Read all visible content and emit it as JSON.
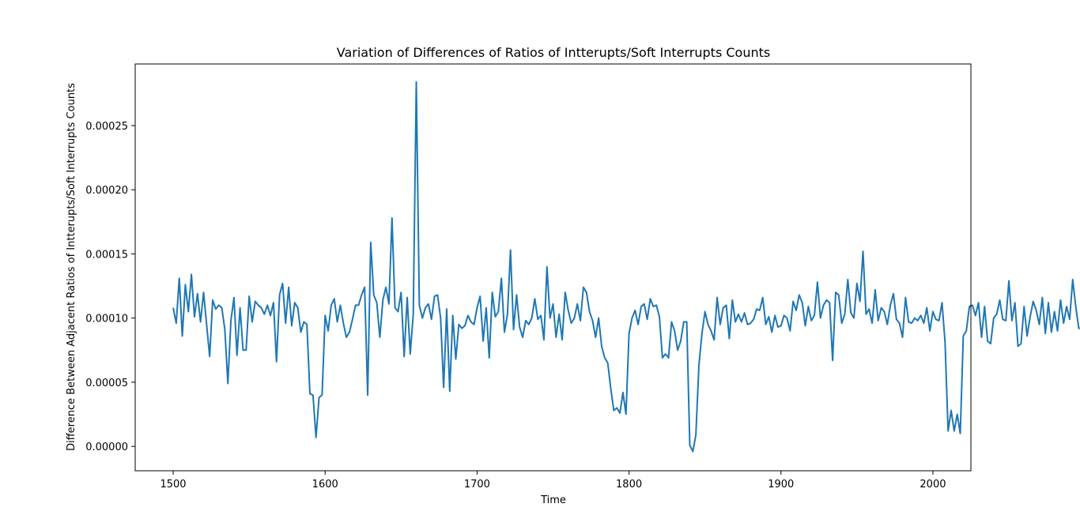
{
  "chart_data": {
    "type": "line",
    "title": "Variation of Differences of Ratios of Intterupts/Soft Interrupts Counts",
    "xlabel": "Time",
    "ylabel": "Difference Between Adjacent Ratios of Intterupts/Soft Interrupts Counts",
    "xlim": [
      1475,
      2025
    ],
    "ylim": [
      -1.9e-05,
      0.000298
    ],
    "x_ticks": [
      1500,
      1600,
      1700,
      1800,
      1900,
      2000
    ],
    "x_tick_labels": [
      "1500",
      "1600",
      "1700",
      "1800",
      "1900",
      "2000"
    ],
    "y_ticks": [
      0,
      5e-05,
      0.0001,
      0.00015,
      0.0002,
      0.00025
    ],
    "y_tick_labels": [
      "0.00000",
      "0.00005",
      "0.00010",
      "0.00015",
      "0.00020",
      "0.00025"
    ],
    "grid": false,
    "legend": "none",
    "line_color": "#1f77b4",
    "series": [
      {
        "x_start": 1500,
        "x_step": 2,
        "values": [
          0.000108,
          9.6e-05,
          0.000131,
          8.6e-05,
          0.000126,
          0.000105,
          0.000134,
          0.000101,
          0.000119,
          9.7e-05,
          0.00012,
          9.5e-05,
          7e-05,
          0.000114,
          0.000107,
          0.00011,
          0.000108,
          9.1e-05,
          4.9e-05,
          9.8e-05,
          0.000116,
          7.1e-05,
          0.000108,
          7.5e-05,
          7.5e-05,
          0.000117,
          9.7e-05,
          0.000113,
          0.00011,
          0.000108,
          0.000103,
          0.00011,
          0.000102,
          0.000112,
          6.6e-05,
          0.000118,
          0.000127,
          9.6e-05,
          0.000124,
          9.4e-05,
          0.000112,
          0.000108,
          8.9e-05,
          9.7e-05,
          9.5e-05,
          4.1e-05,
          4e-05,
          7e-06,
          3.8e-05,
          4e-05,
          0.000102,
          9e-05,
          0.00011,
          0.000115,
          9.7e-05,
          0.00011,
          9.6e-05,
          8.5e-05,
          8.9e-05,
          9.9e-05,
          0.00011,
          0.00011,
          0.000118,
          0.000124,
          4e-05,
          0.000159,
          0.000118,
          0.000112,
          8.5e-05,
          0.000114,
          0.000124,
          0.000111,
          0.000178,
          0.000108,
          0.000105,
          0.00012,
          7e-05,
          0.000116,
          7.2e-05,
          0.000103,
          0.000284,
          0.00011,
          0.0001,
          0.000108,
          0.000111,
          9.9e-05,
          0.000117,
          0.000118,
          0.0001,
          4.6e-05,
          0.000107,
          4.3e-05,
          0.000102,
          6.8e-05,
          9.5e-05,
          9.2e-05,
          9.4e-05,
          0.000102,
          9.7e-05,
          9.5e-05,
          0.000108,
          0.000117,
          8.2e-05,
          0.000108,
          6.9e-05,
          0.00012,
          0.000101,
          0.000105,
          0.000131,
          8.9e-05,
          0.000103,
          0.000153,
          9.1e-05,
          0.000118,
          9.3e-05,
          8.5e-05,
          9.8e-05,
          9.5e-05,
          0.0001,
          0.000115,
          9.9e-05,
          0.000102,
          8.3e-05,
          0.00014,
          0.0001,
          0.000111,
          8.5e-05,
          0.000103,
          8.3e-05,
          0.00012,
          0.000106,
          9.6e-05,
          0.0001,
          0.000111,
          9.8e-05,
          0.000124,
          0.00012,
          0.000105,
          9.8e-05,
          8.5e-05,
          0.0001,
          7.8e-05,
          6.9e-05,
          6.5e-05,
          4.5e-05,
          2.8e-05,
          3e-05,
          2.6e-05,
          4.2e-05,
          2.5e-05,
          8.8e-05,
          0.0001,
          0.000106,
          9.5e-05,
          0.000109,
          0.000111,
          9.9e-05,
          0.000115,
          0.000109,
          0.00011,
          0.000101,
          6.9e-05,
          7.2e-05,
          6.9e-05,
          9.7e-05,
          9e-05,
          7.5e-05,
          8.2e-05,
          9.7e-05,
          9.7e-05,
          1e-06,
          -4e-06,
          9e-06,
          6.3e-05,
          8.8e-05,
          0.000105,
          9.5e-05,
          9e-05,
          8.3e-05,
          0.000116,
          9.5e-05,
          0.000108,
          0.00011,
          8.4e-05,
          0.000114,
          9.7e-05,
          0.000103,
          9.7e-05,
          0.000104,
          9.5e-05,
          9.6e-05,
          9.9e-05,
          0.000107,
          0.000106,
          0.000116,
          9.5e-05,
          0.000101,
          8.9e-05,
          0.000102,
          9.3e-05,
          9.4e-05,
          0.000102,
          0.0001,
          9e-05,
          0.000113,
          0.000106,
          0.000118,
          0.000112,
          9.4e-05,
          0.000109,
          9.8e-05,
          0.000102,
          0.000128,
          0.0001,
          0.00011,
          0.000114,
          0.000112,
          6.7e-05,
          0.00012,
          0.000118,
          9.6e-05,
          0.000103,
          0.00013,
          0.000104,
          0.0001,
          0.000127,
          0.000113,
          0.000152,
          0.000103,
          0.000107,
          9.6e-05,
          0.000122,
          9.8e-05,
          0.000108,
          0.000105,
          9.5e-05,
          0.00011,
          0.000119,
          9.9e-05,
          9.6e-05,
          8.5e-05,
          0.000116,
          9.7e-05,
          9.6e-05,
          0.0001,
          9.8e-05,
          0.000102,
          9.6e-05,
          0.000108,
          9e-05,
          0.000105,
          9.9e-05,
          9.8e-05,
          0.000112,
          8.1e-05,
          1.2e-05,
          2.8e-05,
          1.2e-05,
          2.5e-05,
          1e-05,
          8.6e-05,
          9e-05,
          0.000109,
          0.00011,
          0.000102,
          0.000112,
          8.5e-05,
          0.000109,
          8.2e-05,
          8e-05,
          0.0001,
          0.000103,
          0.000114,
          9.9e-05,
          9.8e-05,
          0.000129,
          9.8e-05,
          0.000112,
          7.8e-05,
          8e-05,
          0.000109,
          8.6e-05,
          0.000101,
          0.000113,
          0.000106,
          9.5e-05,
          0.000116,
          8.8e-05,
          0.000112,
          8.9e-05,
          0.000105,
          9e-05,
          0.000114,
          9.6e-05,
          0.000109,
          9.9e-05,
          0.00013,
          0.000109,
          9.2e-05,
          9.2e-05,
          0.000104,
          9e-05,
          0.000116,
          0.000101,
          8e-05,
          0.000121,
          0.0001,
          9.5e-05,
          9.2e-05,
          0.000118,
          0.000115,
          9.8e-05,
          9.6e-05,
          8.4e-05,
          8e-05,
          5.6e-05,
          9e-05,
          7.8e-05,
          6.7e-05,
          6.5e-05,
          0.000102,
          8.3e-05,
          9.5e-05,
          8.7e-05,
          9.8e-05,
          8.3e-05,
          8.5e-05,
          0.00011,
          9e-05,
          0.000167,
          8.5e-05,
          0.000128,
          9.5e-05,
          0.000125,
          0.000112,
          6.1e-05,
          0.000117,
          0.000106,
          0.0001,
          8.2e-05,
          0.000111,
          9.4e-05,
          0.000128,
          8.8e-05,
          0.000106,
          9.7e-05,
          8.7e-05,
          7.9e-05,
          6.5e-05,
          0.000105,
          8.7e-05,
          0.000117,
          8.5e-05,
          5e-05,
          8e-05,
          1e-05,
          1.8e-05,
          1.5e-05,
          2.6e-05,
          2e-05,
          8.8e-05,
          9e-05,
          0.000117,
          9.5e-05,
          0.000101,
          0.000108,
          0.000101,
          9.8e-05,
          9.7e-05,
          8.6e-05,
          0.000114,
          0.000108,
          0.0001,
          0.00011,
          9.8e-05,
          9.3e-05,
          0.000115,
          0.000112,
          9e-05,
          0.00011,
          8.5e-05,
          0.000103,
          9.3e-05,
          0.000108,
          0.000128,
          0.0001,
          9.4e-05,
          0.000115,
          0.000106,
          0.000103,
          9.6e-05,
          0.00012,
          0.0001,
          0.000112,
          9.8e-05,
          0.000107,
          0.000114,
          9.7e-05,
          0.000101,
          9.9e-05,
          9.8e-05,
          0.00011,
          0.000112,
          9.6e-05,
          9e-05,
          0.000102,
          9.5e-05,
          0.000114,
          0.000108,
          9.9e-05,
          0.00011,
          8.7e-05,
          0.000108,
          9.7e-05,
          0.000105,
          8.8e-05,
          0.000109,
          9.1e-05,
          8.5e-05,
          9.8e-05,
          0.000113,
          9.2e-05,
          0.0001,
          8.1e-05,
          0.000108,
          0.000107,
          0.000105,
          9.6e-05,
          0.000106,
          0.000107,
          7.8e-05,
          0.000111,
          7.6e-05,
          0.0001,
          8e-05,
          9.4e-05,
          0.000105,
          0.000112,
          0.000115
        ]
      }
    ]
  }
}
